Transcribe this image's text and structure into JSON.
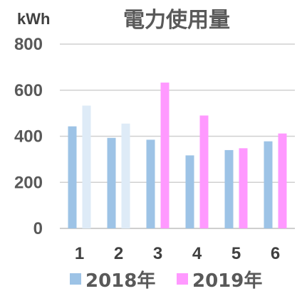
{
  "chart_data": {
    "type": "bar",
    "title": "電力使用量",
    "unit": "kWh",
    "categories": [
      "1",
      "2",
      "3",
      "4",
      "5",
      "6"
    ],
    "series": [
      {
        "name": "2018年",
        "color": "#9dc3e6",
        "values": [
          443,
          393,
          385,
          317,
          340,
          378
        ]
      },
      {
        "name": "2019年",
        "color": "#ff99ff",
        "values": [
          533,
          455,
          633,
          490,
          348,
          412
        ]
      }
    ],
    "bar_colors_2019": [
      "#deebf7",
      "#deebf7",
      "#ff99ff",
      "#ff99ff",
      "#ff99ff",
      "#ff99ff"
    ],
    "yticks": [
      0,
      200,
      400,
      600,
      800
    ],
    "ylim": [
      0,
      800
    ],
    "grid": true,
    "legend_position": "bottom"
  }
}
